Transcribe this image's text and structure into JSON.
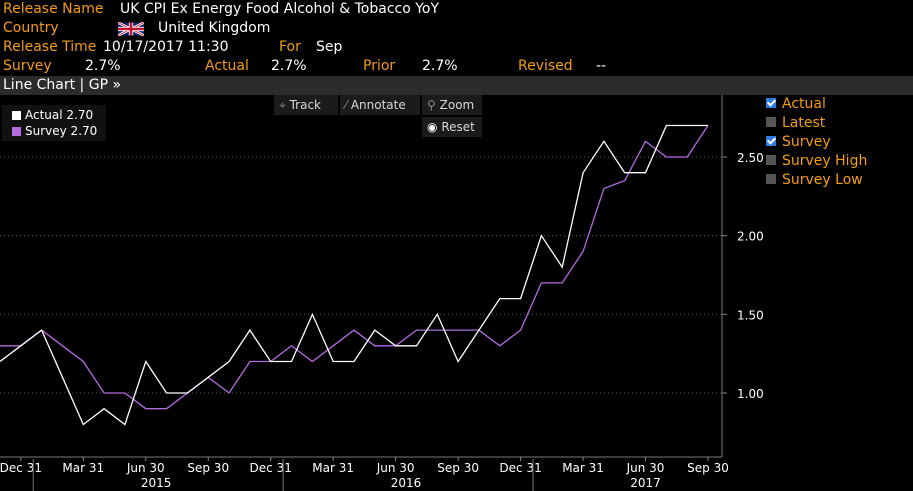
{
  "header": {
    "release_name_label": "Release Name",
    "release_name_value": "UK CPI Ex Energy Food Alcohol & Tobacco YoY",
    "country_label": "Country",
    "country_value": "United Kingdom",
    "release_time_label": "Release Time",
    "release_time_value": "10/17/2017  11:30",
    "for_label": "For",
    "for_value": "Sep",
    "survey_label": "Survey",
    "survey_value": "2.7%",
    "actual_label": "Actual",
    "actual_value": "2.7%",
    "prior_label": "Prior",
    "prior_value": "2.7%",
    "revised_label": "Revised",
    "revised_value": "--"
  },
  "chart_bar": {
    "label": "Line Chart | GP »"
  },
  "toolbar": {
    "track": "Track",
    "annotate": "Annotate",
    "zoom": "Zoom",
    "reset": "Reset"
  },
  "legend": {
    "actual": "Actual  2.70",
    "survey": "Survey  2.70"
  },
  "toggles": [
    {
      "label": "Actual",
      "checked": true
    },
    {
      "label": "Latest",
      "checked": false
    },
    {
      "label": "Survey",
      "checked": true
    },
    {
      "label": "Survey High",
      "checked": false
    },
    {
      "label": "Survey Low",
      "checked": false
    }
  ],
  "colors": {
    "actual": "#ffffff",
    "survey": "#b36be0",
    "label": "#f39c12",
    "background": "#000000"
  },
  "chart_data": {
    "type": "line",
    "x": [
      "2014-11",
      "2014-12",
      "2015-01",
      "2015-02",
      "2015-03",
      "2015-04",
      "2015-05",
      "2015-06",
      "2015-07",
      "2015-08",
      "2015-09",
      "2015-10",
      "2015-11",
      "2015-12",
      "2016-01",
      "2016-02",
      "2016-03",
      "2016-04",
      "2016-05",
      "2016-06",
      "2016-07",
      "2016-08",
      "2016-09",
      "2016-10",
      "2016-11",
      "2016-12",
      "2017-01",
      "2017-02",
      "2017-03",
      "2017-04",
      "2017-05",
      "2017-06",
      "2017-07",
      "2017-08",
      "2017-09"
    ],
    "series": [
      {
        "name": "Actual",
        "values": [
          1.2,
          1.3,
          1.4,
          1.1,
          0.8,
          0.9,
          0.8,
          1.2,
          1.0,
          1.0,
          1.1,
          1.2,
          1.4,
          1.2,
          1.2,
          1.5,
          1.2,
          1.2,
          1.4,
          1.3,
          1.3,
          1.5,
          1.2,
          1.4,
          1.6,
          1.6,
          2.0,
          1.8,
          2.4,
          2.6,
          2.4,
          2.4,
          2.7,
          2.7,
          2.7
        ]
      },
      {
        "name": "Survey",
        "values": [
          1.3,
          1.3,
          1.4,
          1.3,
          1.2,
          1.0,
          1.0,
          0.9,
          0.9,
          1.0,
          1.1,
          1.0,
          1.2,
          1.2,
          1.3,
          1.2,
          1.3,
          1.4,
          1.3,
          1.3,
          1.4,
          1.4,
          1.4,
          1.4,
          1.3,
          1.4,
          1.7,
          1.7,
          1.9,
          2.3,
          2.35,
          2.6,
          2.5,
          2.5,
          2.7
        ]
      }
    ],
    "y_ticks": [
      "1.00",
      "1.50",
      "2.00",
      "2.50"
    ],
    "x_ticks": [
      "Dec 31",
      "Mar 31",
      "Jun 30",
      "Sep 30",
      "Dec 31",
      "Mar 31",
      "Jun 30",
      "Sep 30",
      "Dec 31",
      "Mar 31",
      "Jun 30",
      "Sep 30"
    ],
    "x_tick_months": [
      "2014-12",
      "2015-03",
      "2015-06",
      "2015-09",
      "2015-12",
      "2016-03",
      "2016-06",
      "2016-09",
      "2016-12",
      "2017-03",
      "2017-06",
      "2017-09"
    ],
    "year_labels": [
      "2015",
      "2016",
      "2017"
    ],
    "year_label_months": [
      "2015-06.5",
      "2016-06.5",
      "2017-06"
    ],
    "ylim": [
      0.65,
      2.9
    ]
  }
}
